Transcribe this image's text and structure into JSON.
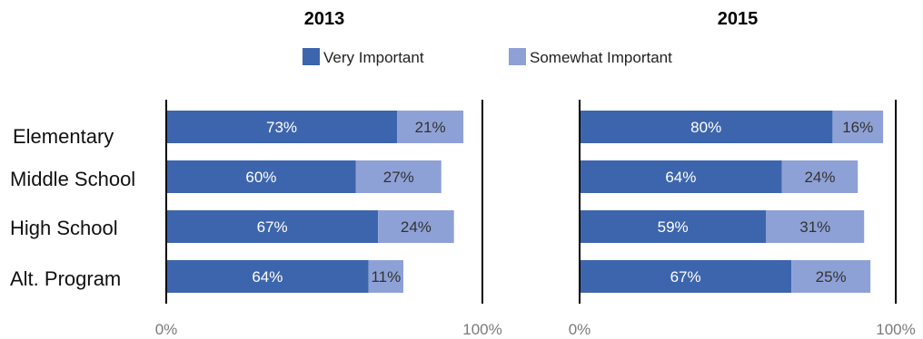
{
  "chart_data": {
    "type": "bar",
    "orientation": "horizontal",
    "stacked": true,
    "categories": [
      "Elementary",
      "Middle School",
      "High School",
      "Alt. Program"
    ],
    "legend": {
      "placement": "top-center",
      "entries": [
        "Very Important",
        "Somewhat Important"
      ]
    },
    "colors": {
      "Very Important": "#3d65ad",
      "Somewhat Important": "#8ea1d6"
    },
    "xlim": [
      0,
      100
    ],
    "x_ticks": [
      "0%",
      "100%"
    ],
    "grid": false,
    "panels": [
      {
        "title": "2013",
        "series": [
          {
            "name": "Very Important",
            "values": [
              73,
              60,
              67,
              64
            ],
            "labels": [
              "73%",
              "60%",
              "67%",
              "64%"
            ]
          },
          {
            "name": "Somewhat Important",
            "values": [
              21,
              27,
              24,
              11
            ],
            "labels": [
              "21%",
              "27%",
              "24%",
              "11%"
            ]
          }
        ]
      },
      {
        "title": "2015",
        "series": [
          {
            "name": "Very Important",
            "values": [
              80,
              64,
              59,
              67
            ],
            "labels": [
              "80%",
              "64%",
              "59%",
              "67%"
            ]
          },
          {
            "name": "Somewhat Important",
            "values": [
              16,
              24,
              31,
              25
            ],
            "labels": [
              "16%",
              "24%",
              "31%",
              "25%"
            ]
          }
        ]
      }
    ]
  }
}
